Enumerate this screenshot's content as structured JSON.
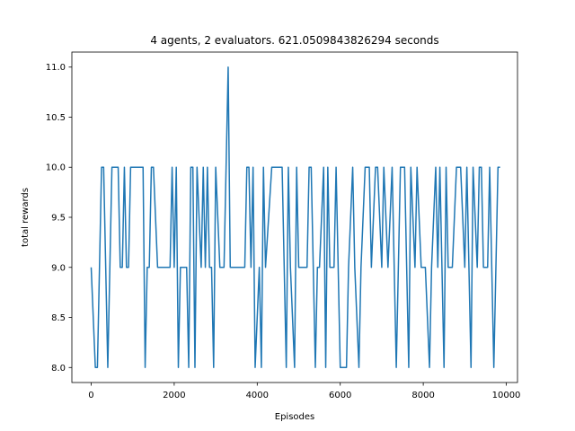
{
  "chart_data": {
    "type": "line",
    "title": "4 agents, 2 evaluators. 621.0509843826294 seconds",
    "x_label": "Episodes",
    "y_label": "total rewards",
    "x": [
      0,
      100,
      150,
      200,
      250,
      300,
      400,
      500,
      650,
      700,
      750,
      800,
      850,
      900,
      950,
      1250,
      1300,
      1350,
      1400,
      1450,
      1500,
      1600,
      1900,
      1950,
      2000,
      2050,
      2100,
      2150,
      2300,
      2350,
      2400,
      2450,
      2500,
      2550,
      2650,
      2700,
      2750,
      2800,
      2850,
      2900,
      2950,
      3000,
      3100,
      3200,
      3250,
      3300,
      3350,
      3700,
      3750,
      3800,
      3850,
      3900,
      3950,
      4050,
      4100,
      4150,
      4200,
      4350,
      4600,
      4650,
      4700,
      4750,
      4800,
      4900,
      4950,
      5000,
      5200,
      5250,
      5300,
      5400,
      5450,
      5500,
      5600,
      5650,
      5700,
      5750,
      5850,
      5900,
      5950,
      6000,
      6150,
      6200,
      6300,
      6350,
      6450,
      6500,
      6600,
      6700,
      6750,
      6850,
      6900,
      7000,
      7050,
      7150,
      7250,
      7300,
      7350,
      7450,
      7550,
      7600,
      7650,
      7700,
      7800,
      7850,
      7950,
      8050,
      8150,
      8200,
      8300,
      8350,
      8400,
      8500,
      8550,
      8600,
      8700,
      8800,
      8900,
      9000,
      9050,
      9150,
      9200,
      9300,
      9350,
      9400,
      9450,
      9550,
      9600,
      9650,
      9700,
      9750,
      9800,
      9850
    ],
    "series": [
      {
        "name": "total rewards",
        "color": "#1f77b4",
        "values": [
          9,
          8,
          8,
          9,
          10,
          10,
          8,
          10,
          10,
          9,
          9,
          10,
          9,
          9,
          10,
          10,
          8,
          9,
          9,
          10,
          10,
          9,
          9,
          10,
          9,
          10,
          8,
          9,
          9,
          8,
          10,
          10,
          8,
          10,
          9,
          10,
          9,
          10,
          9,
          9,
          8,
          10,
          9,
          9,
          10,
          11,
          9,
          9,
          10,
          10,
          9,
          10,
          8,
          9,
          8,
          10,
          9,
          10,
          10,
          9,
          8,
          10,
          9,
          8,
          10,
          9,
          9,
          10,
          10,
          8,
          9,
          9,
          10,
          8,
          10,
          9,
          9,
          10,
          9,
          8,
          8,
          9,
          10,
          9,
          8,
          9,
          10,
          10,
          9,
          10,
          10,
          9,
          10,
          9,
          10,
          9,
          8,
          10,
          10,
          9,
          8,
          10,
          9,
          10,
          9,
          9,
          8,
          9,
          10,
          9,
          10,
          8,
          10,
          9,
          9,
          10,
          10,
          9,
          10,
          8,
          10,
          9,
          10,
          10,
          9,
          9,
          10,
          9,
          8,
          9,
          10,
          10
        ]
      }
    ],
    "xlim": [
      -465,
      10270
    ],
    "ylim": [
      7.85,
      11.15
    ],
    "xticks": [
      0,
      2000,
      4000,
      6000,
      8000,
      10000
    ],
    "yticks": [
      {
        "value": 8,
        "label": "8.0"
      },
      8.5,
      {
        "value": 9,
        "label": "9.0"
      },
      9.5,
      {
        "value": 10,
        "label": "10.0"
      },
      10.5,
      {
        "value": 11,
        "label": "11.0"
      }
    ]
  }
}
